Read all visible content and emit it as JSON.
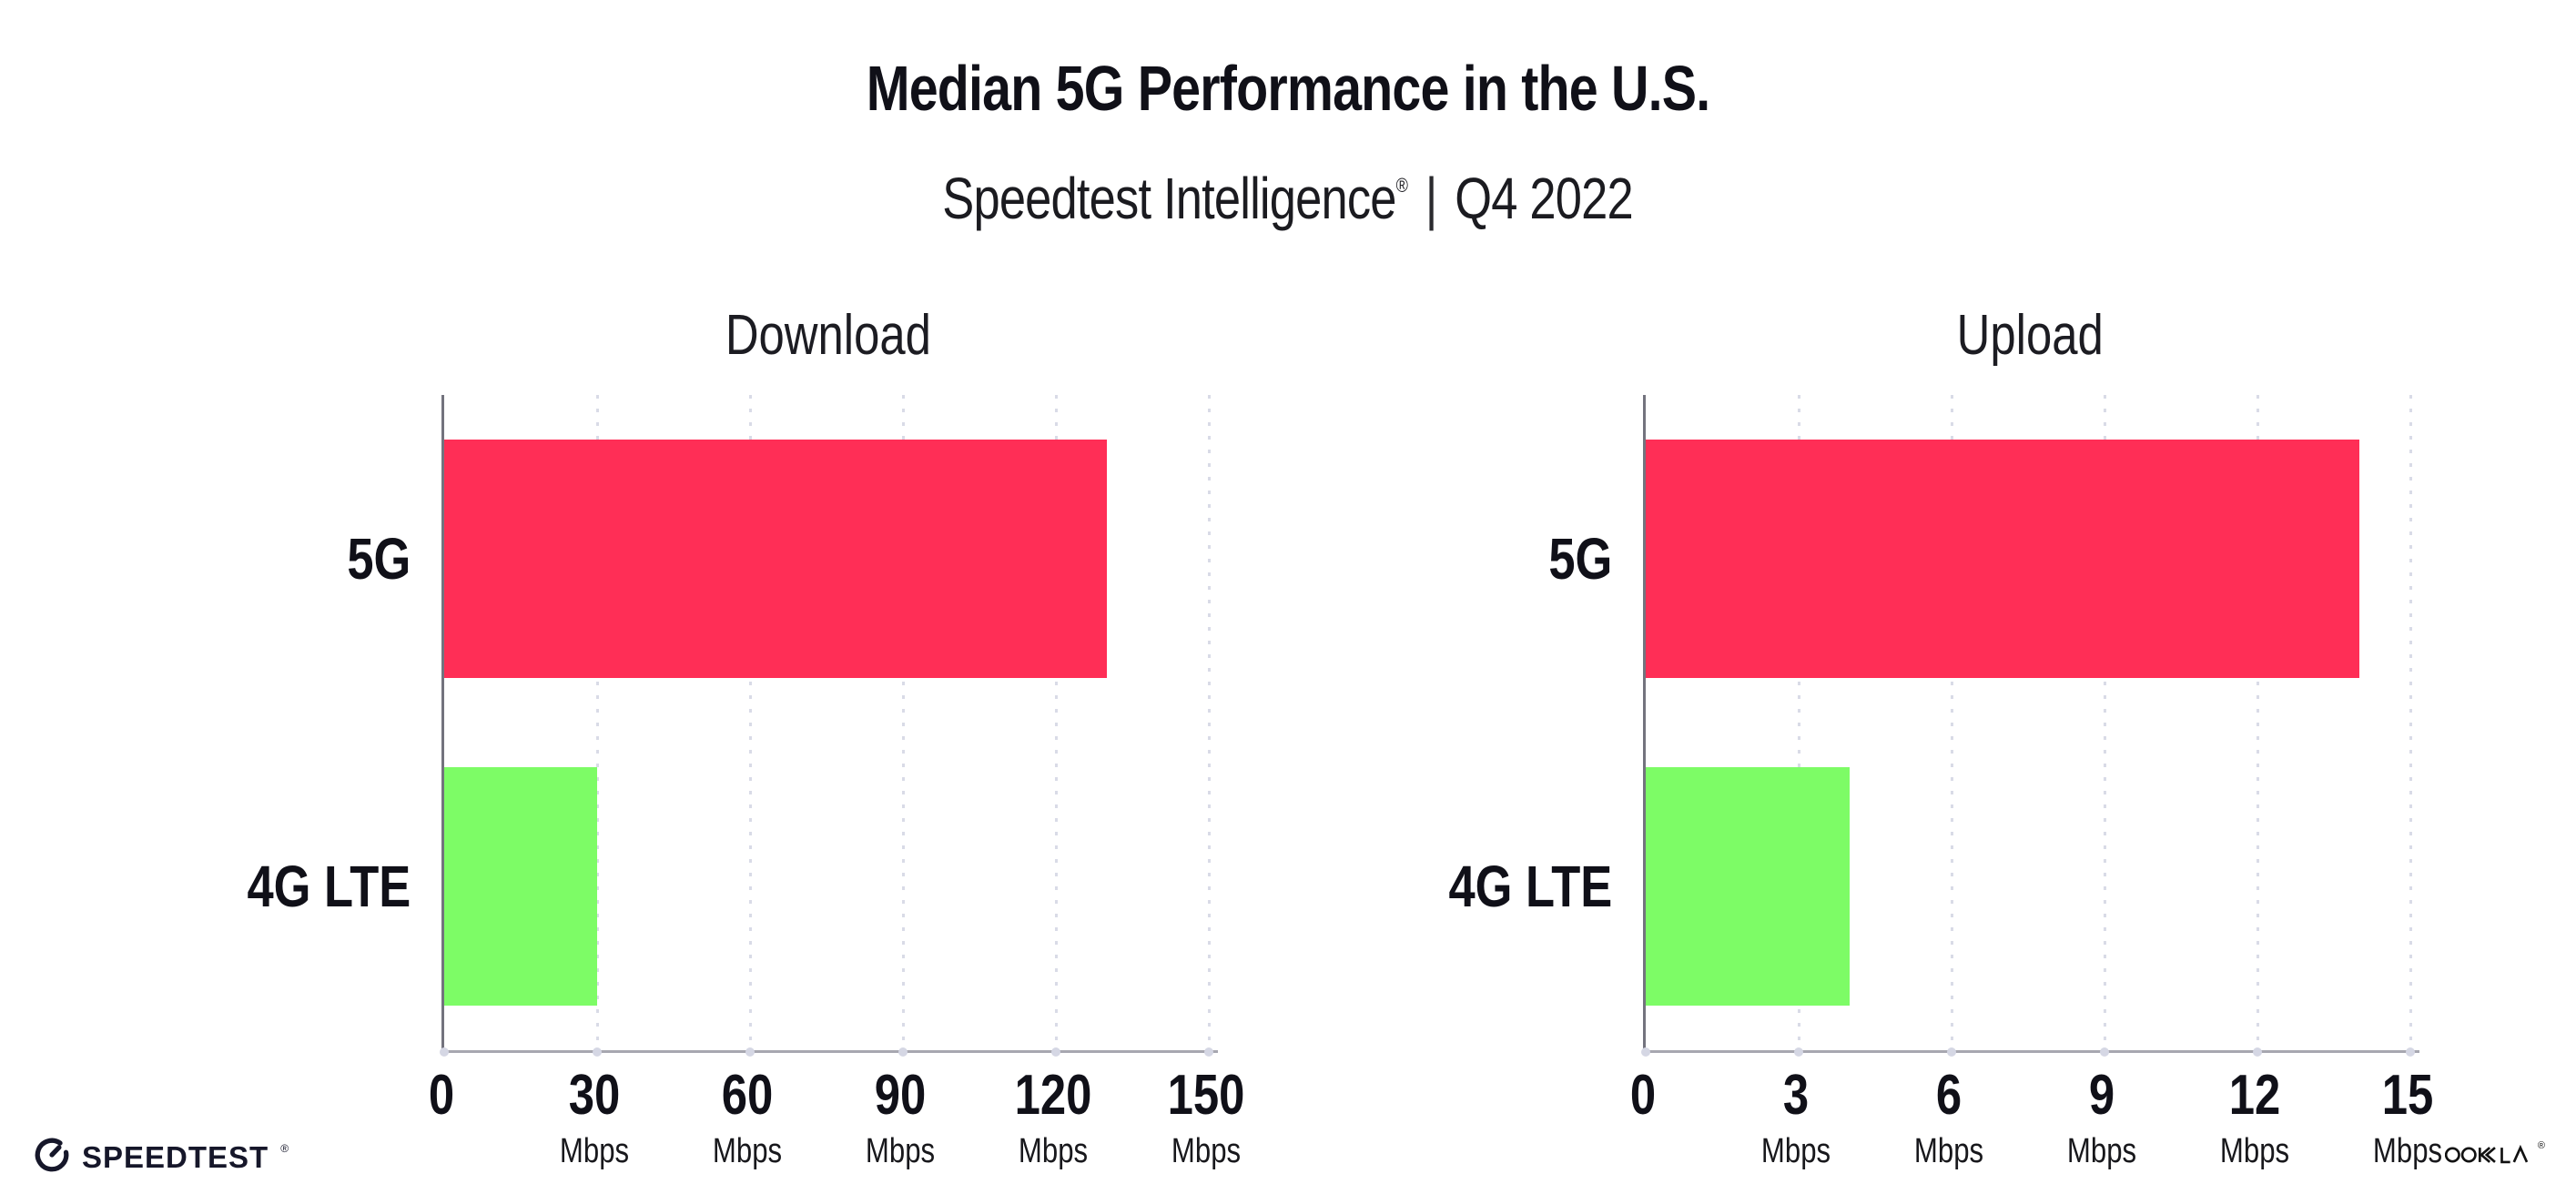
{
  "header": {
    "title": "Median 5G Performance in the U.S.",
    "subtitle": {
      "brand": "Speedtest Intelligence",
      "reg": "®",
      "separator": "|",
      "period": "Q4 2022"
    }
  },
  "chart_data": [
    {
      "type": "bar",
      "orientation": "horizontal",
      "title": "Download",
      "categories": [
        "5G",
        "4G LTE"
      ],
      "values": [
        130,
        30
      ],
      "unit": "Mbps",
      "xlim": [
        0,
        150
      ],
      "xticks": [
        0,
        30,
        60,
        90,
        120,
        150
      ],
      "tick_unit_label": "Mbps",
      "bar_colors": [
        "#FF2E56",
        "#7DFC66"
      ],
      "grid": "dotted vertical gridlines at each tick",
      "legend": "none"
    },
    {
      "type": "bar",
      "orientation": "horizontal",
      "title": "Upload",
      "categories": [
        "5G",
        "4G LTE"
      ],
      "values": [
        14,
        4
      ],
      "unit": "Mbps",
      "xlim": [
        0,
        15
      ],
      "xticks": [
        0,
        3,
        6,
        9,
        12,
        15
      ],
      "tick_unit_label": "Mbps",
      "bar_colors": [
        "#FF2E56",
        "#7DFC66"
      ],
      "grid": "dotted vertical gridlines at each tick",
      "legend": "none"
    }
  ],
  "footer": {
    "speedtest": {
      "text": "SPEEDTEST",
      "reg": "®"
    },
    "ookla": {
      "text": "OOKLA",
      "reg": "®"
    }
  },
  "colors": {
    "bar_5g": "#FF2E56",
    "bar_4g_lte": "#7DFC66",
    "text": "#101018",
    "y_axis": "#73737e",
    "x_axis": "#a7a7b0",
    "gridline": "#d9dbe7",
    "background": "#FFFFFF"
  }
}
